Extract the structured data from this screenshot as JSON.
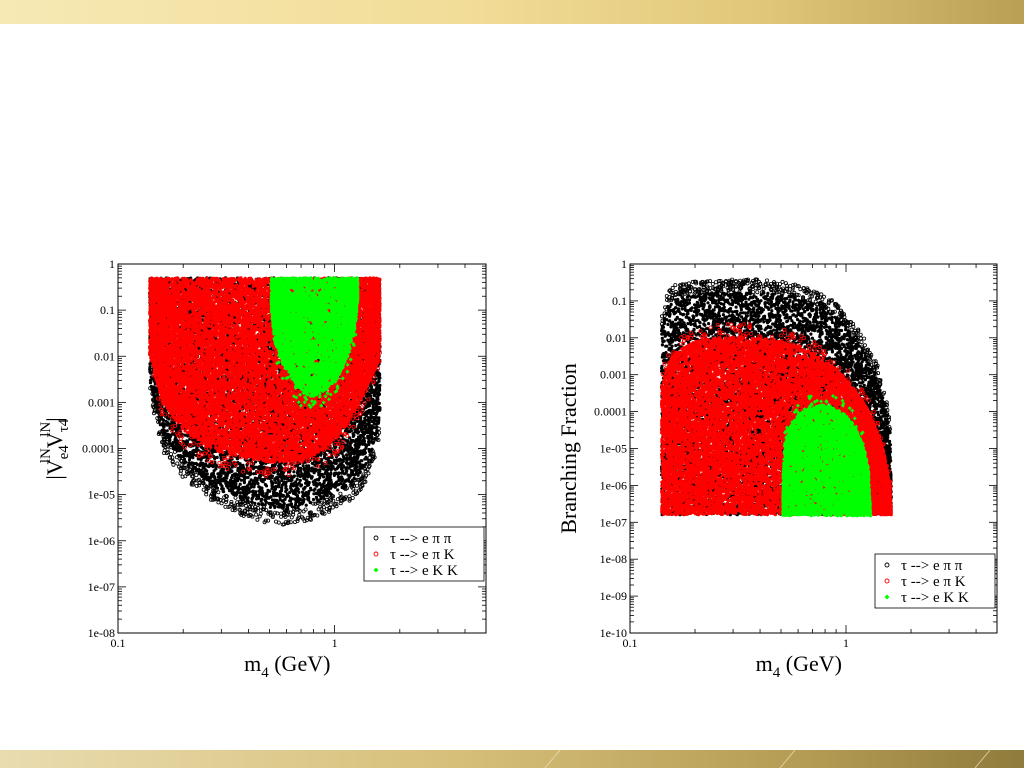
{
  "chart_data": [
    {
      "type": "scatter",
      "title": "",
      "xlabel_main": "m",
      "xlabel_sub": "4",
      "xlabel_rest": " (GeV)",
      "ylabel": "|V_e4^{lN} V_τ4^{lN}|",
      "ylabel_parts": {
        "open": "|V",
        "sub1": "e4",
        "sup1": "lN",
        "mid": "V",
        "sub2": "τ4",
        "sup2": "lN",
        "close": "|"
      },
      "x_scale": "log",
      "y_scale": "log",
      "xlim": [
        0.1,
        5.0
      ],
      "ylim": [
        1e-08,
        1
      ],
      "x_tick_labels": [
        {
          "value": 0.1,
          "label": "0.1"
        },
        {
          "value": 1,
          "label": "1"
        }
      ],
      "y_tick_labels": [
        {
          "value": 1,
          "label": "1"
        },
        {
          "value": 0.1,
          "label": "0.1"
        },
        {
          "value": 0.01,
          "label": "0.01"
        },
        {
          "value": 0.001,
          "label": "0.001"
        },
        {
          "value": 0.0001,
          "label": "0.0001"
        },
        {
          "value": 1e-05,
          "label": "1e-05"
        },
        {
          "value": 1e-06,
          "label": "1e-06"
        },
        {
          "value": 1e-07,
          "label": "1e-07"
        },
        {
          "value": 1e-08,
          "label": "1e-08"
        }
      ],
      "legend_position": "bottom-right",
      "series": [
        {
          "name": "τ --> e π π",
          "color": "#000000",
          "marker": "open-circle",
          "region": {
            "x": [
              0.14,
              0.16,
              0.2,
              0.25,
              0.3,
              0.4,
              0.5,
              0.6,
              0.7,
              0.8,
              0.9,
              1.0,
              1.1,
              1.2,
              1.3,
              1.4,
              1.5,
              1.6,
              1.62
            ],
            "y_low": [
              0.003,
              0.0002,
              5e-05,
              2e-05,
              1.2e-05,
              7e-06,
              5e-06,
              5e-06,
              5.5e-06,
              6.5e-06,
              8e-06,
              1e-05,
              1.3e-05,
              1.8e-05,
              2.6e-05,
              4.5e-05,
              0.0001,
              0.0003,
              0.002
            ],
            "y_high": [
              0.5,
              0.5,
              0.5,
              0.5,
              0.5,
              0.5,
              0.5,
              0.5,
              0.5,
              0.5,
              0.5,
              0.5,
              0.5,
              0.5,
              0.5,
              0.5,
              0.5,
              0.5,
              0.5
            ]
          }
        },
        {
          "name": "τ --> e π K",
          "color": "#ff0000",
          "marker": "open-circle",
          "region": {
            "x": [
              0.14,
              0.16,
              0.2,
              0.25,
              0.3,
              0.4,
              0.5,
              0.6,
              0.7,
              0.8,
              0.9,
              1.0,
              1.1,
              1.2,
              1.3,
              1.4,
              1.5,
              1.6,
              1.62
            ],
            "y_low": [
              0.01,
              0.001,
              0.00025,
              0.00012,
              8e-05,
              6e-05,
              5e-05,
              5e-05,
              5.5e-05,
              7e-05,
              0.0001,
              0.00015,
              0.00025,
              0.0005,
              0.001,
              0.002,
              0.004,
              0.008,
              0.02
            ],
            "y_high": [
              0.5,
              0.5,
              0.5,
              0.5,
              0.5,
              0.5,
              0.5,
              0.5,
              0.5,
              0.5,
              0.5,
              0.5,
              0.5,
              0.5,
              0.5,
              0.5,
              0.5,
              0.5,
              0.5
            ]
          }
        },
        {
          "name": "τ --> e K K",
          "color": "#00ff00",
          "marker": "filled-diamond",
          "region": {
            "x": [
              0.51,
              0.53,
              0.57,
              0.62,
              0.7,
              0.78,
              0.86,
              0.95,
              1.05,
              1.15,
              1.24,
              1.28
            ],
            "y_low": [
              0.1,
              0.02,
              0.008,
              0.004,
              0.0018,
              0.0013,
              0.0015,
              0.0022,
              0.004,
              0.01,
              0.04,
              0.15
            ],
            "y_high": [
              0.5,
              0.5,
              0.5,
              0.5,
              0.5,
              0.5,
              0.5,
              0.5,
              0.5,
              0.5,
              0.5,
              0.5
            ]
          }
        }
      ]
    },
    {
      "type": "scatter",
      "title": "",
      "xlabel_main": "m",
      "xlabel_sub": "4",
      "xlabel_rest": " (GeV)",
      "ylabel": "Branching Fraction",
      "x_scale": "log",
      "y_scale": "log",
      "xlim": [
        0.1,
        5.0
      ],
      "ylim": [
        1e-10,
        1
      ],
      "x_tick_labels": [
        {
          "value": 0.1,
          "label": "0.1"
        },
        {
          "value": 1,
          "label": "1"
        }
      ],
      "y_tick_labels": [
        {
          "value": 1,
          "label": "1"
        },
        {
          "value": 0.1,
          "label": "0.1"
        },
        {
          "value": 0.01,
          "label": "0.01"
        },
        {
          "value": 0.001,
          "label": "0.001"
        },
        {
          "value": 0.0001,
          "label": "0.0001"
        },
        {
          "value": 1e-05,
          "label": "1e-05"
        },
        {
          "value": 1e-06,
          "label": "1e-06"
        },
        {
          "value": 1e-07,
          "label": "1e-07"
        },
        {
          "value": 1e-08,
          "label": "1e-08"
        },
        {
          "value": 1e-09,
          "label": "1e-09"
        },
        {
          "value": 1e-10,
          "label": "1e-10"
        }
      ],
      "legend_position": "bottom-right",
      "series": [
        {
          "name": "τ --> e π π",
          "color": "#000000",
          "marker": "open-circle",
          "region": {
            "x": [
              0.14,
              0.15,
              0.16,
              0.2,
              0.25,
              0.3,
              0.4,
              0.5,
              0.6,
              0.7,
              0.8,
              0.9,
              1.0,
              1.1,
              1.2,
              1.3,
              1.4,
              1.5,
              1.6,
              1.62
            ],
            "y_low": [
              1.6e-07,
              1.6e-07,
              1.6e-07,
              1.6e-07,
              1.6e-07,
              1.6e-07,
              1.6e-07,
              1.6e-07,
              1.6e-07,
              1.6e-07,
              1.6e-07,
              1.6e-07,
              1.6e-07,
              1.6e-07,
              1.6e-07,
              1.6e-07,
              1.6e-07,
              1.6e-07,
              1.6e-07,
              1.6e-07
            ],
            "y_high": [
              0.02,
              0.08,
              0.12,
              0.15,
              0.17,
              0.18,
              0.17,
              0.15,
              0.12,
              0.09,
              0.06,
              0.04,
              0.02,
              0.01,
              0.005,
              0.002,
              0.0008,
              0.0002,
              3e-05,
              1e-06
            ]
          }
        },
        {
          "name": "τ --> e π K",
          "color": "#ff0000",
          "marker": "open-circle",
          "region": {
            "x": [
              0.14,
              0.15,
              0.16,
              0.2,
              0.25,
              0.3,
              0.4,
              0.5,
              0.6,
              0.7,
              0.8,
              0.9,
              1.0,
              1.1,
              1.2,
              1.3,
              1.4,
              1.5,
              1.6,
              1.62
            ],
            "y_low": [
              1.6e-07,
              1.6e-07,
              1.6e-07,
              1.6e-07,
              1.6e-07,
              1.6e-07,
              1.6e-07,
              1.6e-07,
              1.6e-07,
              1.6e-07,
              1.6e-07,
              1.6e-07,
              1.6e-07,
              1.6e-07,
              1.6e-07,
              1.6e-07,
              1.6e-07,
              1.6e-07,
              1.6e-07,
              1.6e-07
            ],
            "y_high": [
              0.0005,
              0.002,
              0.004,
              0.008,
              0.01,
              0.011,
              0.01,
              0.008,
              0.006,
              0.004,
              0.0025,
              0.0015,
              0.0008,
              0.0004,
              0.0002,
              8e-05,
              3e-05,
              8e-06,
              1e-06,
              2e-07
            ]
          }
        },
        {
          "name": "τ --> e K K",
          "color": "#00ff00",
          "marker": "filled-diamond",
          "region": {
            "x": [
              0.51,
              0.52,
              0.55,
              0.6,
              0.67,
              0.75,
              0.82,
              0.9,
              1.0,
              1.1,
              1.2,
              1.27,
              1.3
            ],
            "y_low": [
              1.5e-07,
              1.5e-07,
              1.5e-07,
              1.5e-07,
              1.5e-07,
              1.5e-07,
              1.5e-07,
              1.5e-07,
              1.5e-07,
              1.5e-07,
              1.5e-07,
              1.5e-07,
              1.5e-07
            ],
            "y_high": [
              1e-06,
              1.5e-05,
              4e-05,
              8e-05,
              0.00012,
              0.00015,
              0.00015,
              0.00012,
              8e-05,
              4e-05,
              1.2e-05,
              3e-06,
              1.5e-07
            ]
          }
        }
      ]
    }
  ]
}
